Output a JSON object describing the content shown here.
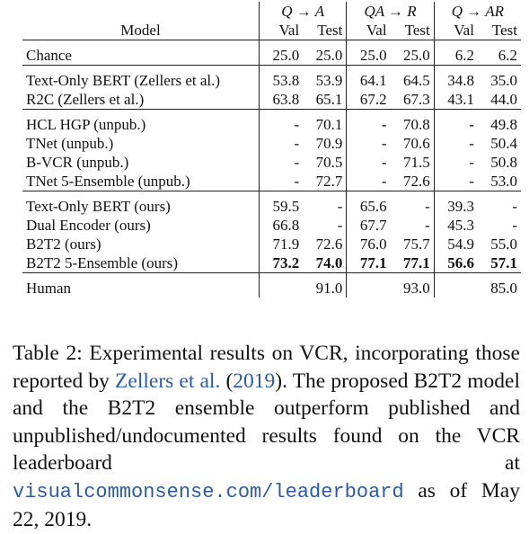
{
  "table": {
    "header": {
      "model": "Model",
      "groups": [
        "Q → A",
        "QA → R",
        "Q → AR"
      ],
      "sub": [
        "Val",
        "Test",
        "Val",
        "Test",
        "Val",
        "Test"
      ]
    },
    "blocks": [
      [
        {
          "model": "Chance",
          "v": [
            "25.0",
            "25.0",
            "25.0",
            "25.0",
            "6.2",
            "6.2"
          ]
        }
      ],
      [
        {
          "model": "Text-Only BERT (Zellers et al.)",
          "v": [
            "53.8",
            "53.9",
            "64.1",
            "64.5",
            "34.8",
            "35.0"
          ]
        },
        {
          "model": "R2C (Zellers et al.)",
          "v": [
            "63.8",
            "65.1",
            "67.2",
            "67.3",
            "43.1",
            "44.0"
          ]
        }
      ],
      [
        {
          "model": "HCL HGP (unpub.)",
          "v": [
            "-",
            "70.1",
            "-",
            "70.8",
            "-",
            "49.8"
          ]
        },
        {
          "model": "TNet (unpub.)",
          "v": [
            "-",
            "70.9",
            "-",
            "70.6",
            "-",
            "50.4"
          ]
        },
        {
          "model": "B-VCR (unpub.)",
          "v": [
            "-",
            "70.5",
            "-",
            "71.5",
            "-",
            "50.8"
          ]
        },
        {
          "model": "TNet 5-Ensemble (unpub.)",
          "v": [
            "-",
            "72.7",
            "-",
            "72.6",
            "-",
            "53.0"
          ]
        }
      ],
      [
        {
          "model": "Text-Only BERT (ours)",
          "v": [
            "59.5",
            "-",
            "65.6",
            "-",
            "39.3",
            "-"
          ]
        },
        {
          "model": "Dual Encoder (ours)",
          "v": [
            "66.8",
            "-",
            "67.7",
            "-",
            "45.3",
            "-"
          ]
        },
        {
          "model": "B2T2 (ours)",
          "v": [
            "71.9",
            "72.6",
            "76.0",
            "75.7",
            "54.9",
            "55.0"
          ]
        },
        {
          "model": "B2T2 5-Ensemble (ours)",
          "v": [
            "73.2",
            "74.0",
            "77.1",
            "77.1",
            "56.6",
            "57.1"
          ],
          "bold": true
        }
      ],
      [
        {
          "model": "Human",
          "v": [
            "",
            "91.0",
            "",
            "93.0",
            "",
            "85.0"
          ]
        }
      ]
    ]
  },
  "caption": {
    "p1": "Table 2: Experimental results on VCR, incorporating those reported by ",
    "cite_author": "Zellers et al.",
    "cite_open": " (",
    "cite_year": "2019",
    "cite_close": ").",
    "p2": " The proposed B2T2 model and the B2T2 ensemble outperform published and unpublished/undocumented results found on the VCR leaderboard at ",
    "url": "visualcommonsense.com/leaderboard",
    "p3": " as of May 22, 2019."
  }
}
